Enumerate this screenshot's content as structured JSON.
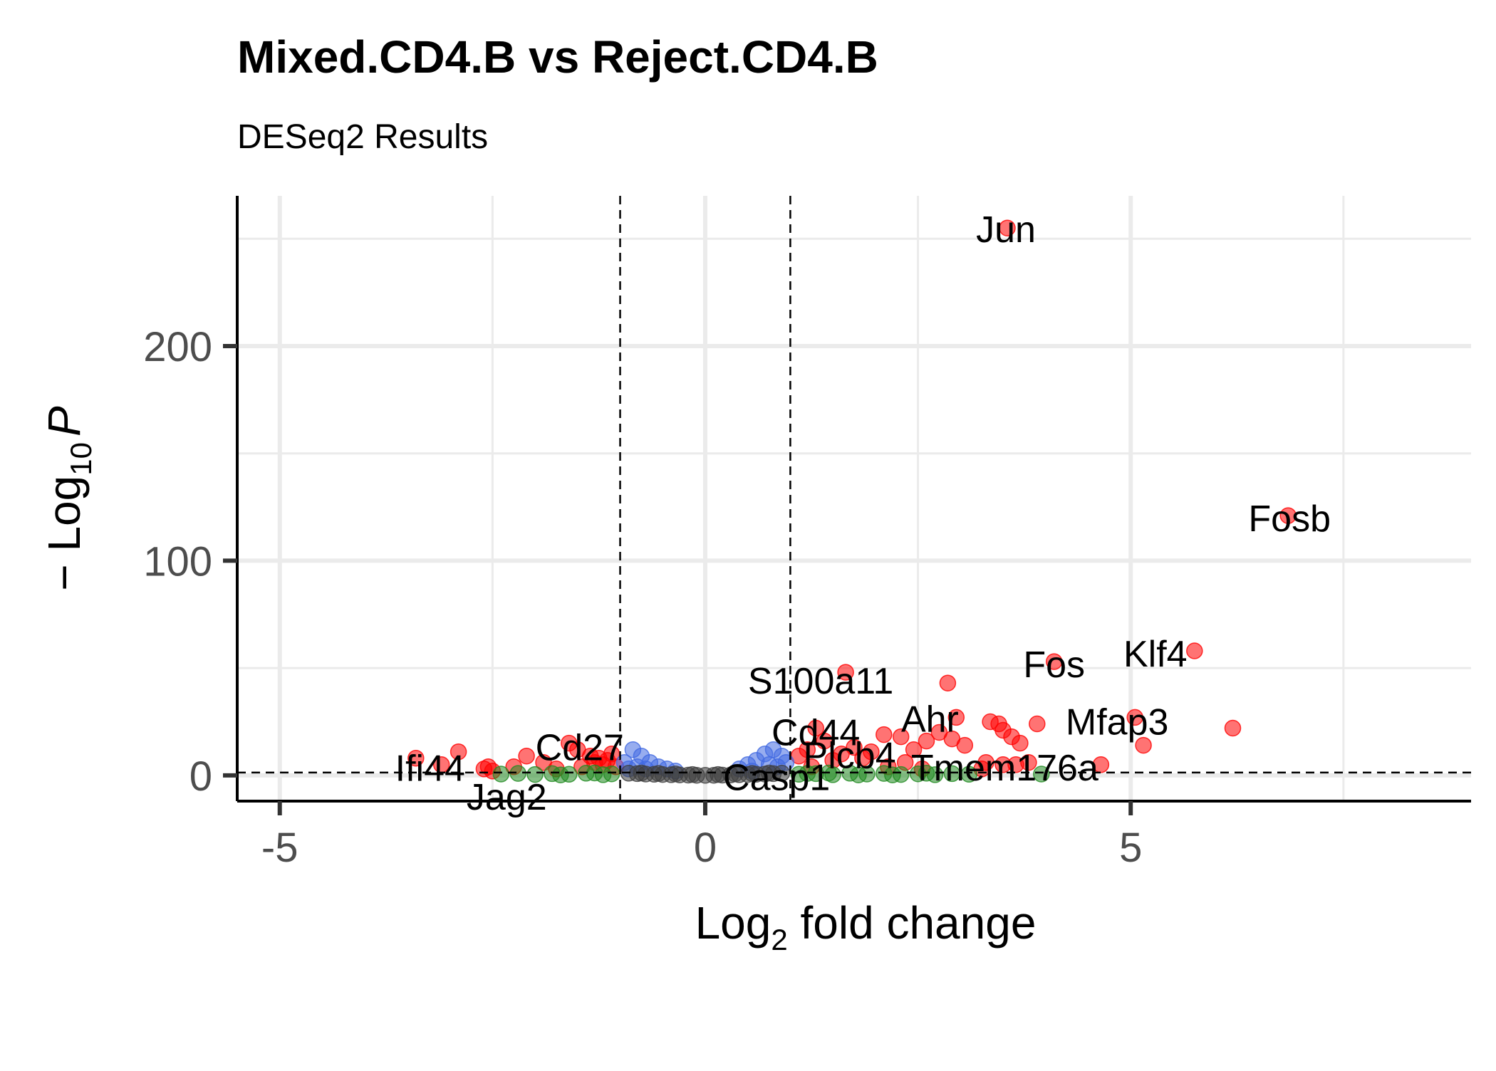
{
  "chart_data": {
    "type": "scatter",
    "title": "Mixed.CD4.B vs Reject.CD4.B",
    "subtitle": "DESeq2 Results",
    "xlabel": {
      "base": "Log",
      "sub": "2",
      "rest": " fold change"
    },
    "ylabel": {
      "pre": "− Log",
      "sub": "10",
      "italic": "P"
    },
    "xlim": [
      -5.5,
      9.0
    ],
    "ylim": [
      -12,
      270
    ],
    "x_ticks": [
      -5,
      0,
      5
    ],
    "x_tick_labels": [
      "-5",
      "0",
      "5"
    ],
    "y_ticks": [
      0,
      100,
      200
    ],
    "y_tick_labels": [
      "0",
      "100",
      "200"
    ],
    "grid": true,
    "legend": "none",
    "fc_cutoff": [
      -1,
      1
    ],
    "p_cutoff": 1.3,
    "colors": {
      "ns": "#404040",
      "log2fc": "#228b22",
      "p": "#4169e1",
      "p_and_log2fc": "#ff0000",
      "cutoff_line": "#000000",
      "grid": "#ebebeb"
    },
    "series": [
      {
        "category": "p_and_log2fc",
        "points": [
          [
            3.55,
            255
          ],
          [
            6.85,
            121
          ],
          [
            5.75,
            58
          ],
          [
            4.1,
            53
          ],
          [
            1.65,
            48
          ],
          [
            2.85,
            43
          ],
          [
            6.2,
            22
          ],
          [
            5.05,
            27
          ],
          [
            5.15,
            14
          ],
          [
            4.65,
            5
          ],
          [
            3.9,
            24
          ],
          [
            3.45,
            24
          ],
          [
            3.35,
            25
          ],
          [
            3.5,
            21
          ],
          [
            3.6,
            18
          ],
          [
            3.7,
            15
          ],
          [
            2.95,
            27
          ],
          [
            2.9,
            17
          ],
          [
            2.75,
            20
          ],
          [
            2.6,
            16
          ],
          [
            2.45,
            12
          ],
          [
            2.3,
            18
          ],
          [
            2.1,
            19
          ],
          [
            1.95,
            11
          ],
          [
            1.85,
            8
          ],
          [
            1.75,
            13
          ],
          [
            1.6,
            10
          ],
          [
            1.5,
            7
          ],
          [
            1.4,
            16
          ],
          [
            1.3,
            22
          ],
          [
            1.2,
            12
          ],
          [
            1.1,
            9
          ],
          [
            3.3,
            6
          ],
          [
            3.5,
            5
          ],
          [
            3.65,
            5
          ],
          [
            3.8,
            6
          ],
          [
            3.25,
            3
          ],
          [
            3.05,
            14
          ],
          [
            2.55,
            3
          ],
          [
            2.35,
            6
          ],
          [
            2.15,
            4
          ],
          [
            1.25,
            4
          ],
          [
            -3.4,
            8
          ],
          [
            -3.1,
            5
          ],
          [
            -2.9,
            11
          ],
          [
            -2.6,
            3
          ],
          [
            -2.5,
            2
          ],
          [
            -2.55,
            4
          ],
          [
            -2.1,
            9
          ],
          [
            -1.6,
            15
          ],
          [
            -1.5,
            12
          ],
          [
            -1.35,
            9
          ],
          [
            -1.3,
            6
          ],
          [
            -1.2,
            5
          ],
          [
            -1.25,
            8
          ],
          [
            -1.15,
            7
          ],
          [
            -1.1,
            10
          ],
          [
            -2.25,
            4
          ],
          [
            -1.9,
            6
          ],
          [
            -1.75,
            3
          ],
          [
            -1.45,
            4
          ],
          [
            -1.05,
            4
          ]
        ]
      },
      {
        "category": "p",
        "points": [
          [
            -0.95,
            6
          ],
          [
            -0.85,
            12
          ],
          [
            -0.75,
            9
          ],
          [
            -0.65,
            6
          ],
          [
            -0.55,
            4
          ],
          [
            -0.45,
            3
          ],
          [
            -0.35,
            2
          ],
          [
            -0.9,
            3
          ],
          [
            -0.8,
            4
          ],
          [
            -0.7,
            3
          ],
          [
            0.4,
            3
          ],
          [
            0.5,
            5
          ],
          [
            0.6,
            7
          ],
          [
            0.7,
            10
          ],
          [
            0.8,
            12
          ],
          [
            0.9,
            9
          ],
          [
            0.95,
            6
          ],
          [
            0.75,
            5
          ],
          [
            0.85,
            4
          ],
          [
            0.55,
            2
          ]
        ]
      },
      {
        "category": "log2fc",
        "points": [
          [
            -2.4,
            0.6
          ],
          [
            -2.2,
            0.9
          ],
          [
            -2.0,
            0.4
          ],
          [
            -1.8,
            0.8
          ],
          [
            -1.6,
            0.5
          ],
          [
            -1.4,
            1.0
          ],
          [
            -1.2,
            0.3
          ],
          [
            -1.1,
            0.7
          ],
          [
            1.1,
            0.5
          ],
          [
            1.3,
            0.8
          ],
          [
            1.5,
            0.3
          ],
          [
            1.7,
            1.0
          ],
          [
            1.9,
            0.6
          ],
          [
            2.1,
            0.9
          ],
          [
            2.3,
            0.4
          ],
          [
            2.5,
            0.7
          ],
          [
            2.7,
            0.3
          ],
          [
            2.9,
            0.8
          ],
          [
            3.1,
            0.5
          ],
          [
            3.95,
            0.6
          ],
          [
            1.2,
            0.9
          ],
          [
            1.45,
            1.1
          ],
          [
            1.8,
            0.2
          ],
          [
            2.2,
            0.2
          ],
          [
            2.6,
            1.0
          ],
          [
            -1.3,
            1.1
          ],
          [
            -1.7,
            0.2
          ]
        ]
      },
      {
        "category": "ns",
        "points": [
          [
            -0.9,
            1.0
          ],
          [
            -0.8,
            0.8
          ],
          [
            -0.7,
            0.6
          ],
          [
            -0.6,
            0.5
          ],
          [
            -0.5,
            0.4
          ],
          [
            -0.4,
            0.3
          ],
          [
            -0.3,
            0.2
          ],
          [
            -0.2,
            0.1
          ],
          [
            -0.1,
            0.05
          ],
          [
            0.0,
            0.0
          ],
          [
            0.1,
            0.05
          ],
          [
            0.2,
            0.1
          ],
          [
            0.3,
            0.2
          ],
          [
            0.4,
            0.3
          ],
          [
            0.5,
            0.4
          ],
          [
            0.6,
            0.5
          ],
          [
            0.7,
            0.6
          ],
          [
            0.8,
            0.8
          ],
          [
            0.9,
            1.0
          ],
          [
            -0.75,
            1.1
          ],
          [
            -0.55,
            0.9
          ],
          [
            0.55,
            0.9
          ],
          [
            0.75,
            1.1
          ],
          [
            -0.35,
            0.7
          ],
          [
            0.35,
            0.7
          ],
          [
            -0.15,
            0.4
          ],
          [
            0.15,
            0.4
          ]
        ]
      }
    ],
    "labels": [
      {
        "text": "Jun",
        "x": 3.55,
        "y": 255
      },
      {
        "text": "Fosb",
        "x": 6.85,
        "y": 121
      },
      {
        "text": "Klf4",
        "x": 5.75,
        "y": 58
      },
      {
        "text": "Fos",
        "x": 4.1,
        "y": 53
      },
      {
        "text": "S100a11",
        "x": 1.65,
        "y": 48
      },
      {
        "text": "Mfap3",
        "x": 5.05,
        "y": 27
      },
      {
        "text": "Ahr",
        "x": 2.85,
        "y": 27
      },
      {
        "text": "Cd44",
        "x": 1.3,
        "y": 22
      },
      {
        "text": "Plcb4",
        "x": 2.45,
        "y": 12
      },
      {
        "text": "Casp1",
        "x": 1.3,
        "y": 9
      },
      {
        "text": "Tmem176a",
        "x": 4.65,
        "y": 5
      },
      {
        "text": "Cd27",
        "x": -1.6,
        "y": 15
      },
      {
        "text": "Ifi44",
        "x": -3.4,
        "y": 8
      },
      {
        "text": "Jag2",
        "x": -2.5,
        "y": 2
      }
    ]
  }
}
